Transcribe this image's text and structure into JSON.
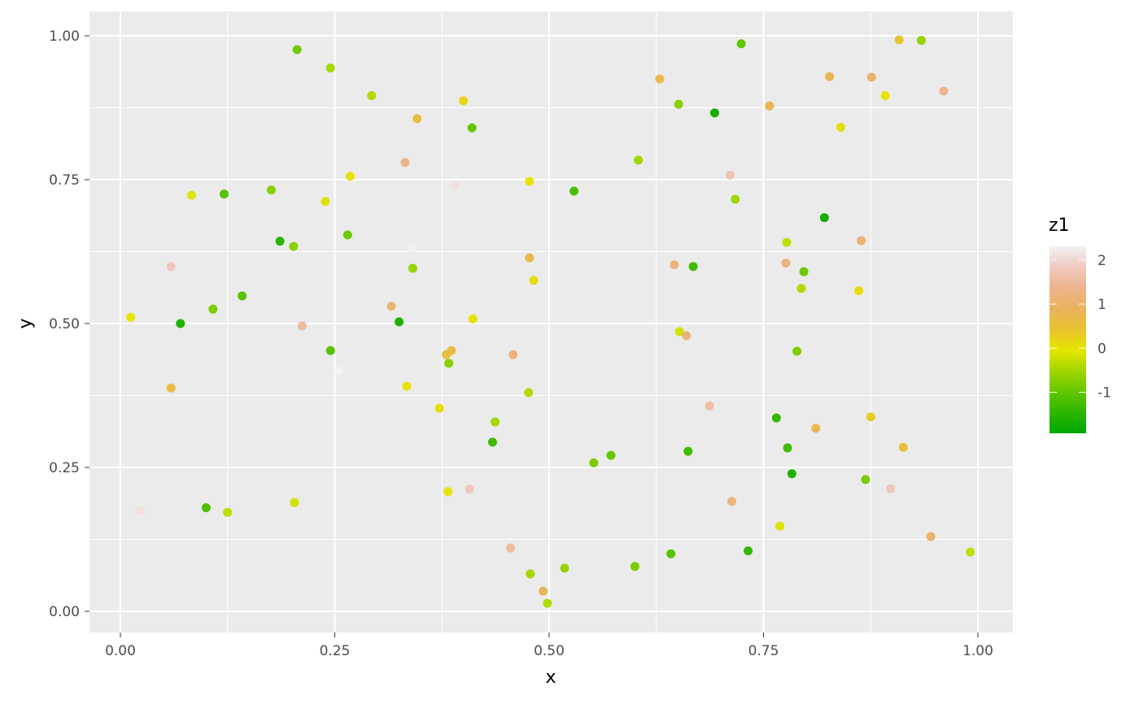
{
  "chart_data": {
    "type": "scatter",
    "xlabel": "x",
    "ylabel": "y",
    "xlim": [
      -0.036,
      1.04
    ],
    "ylim": [
      -0.035,
      1.044
    ],
    "xticks": [
      "0.00",
      "0.25",
      "0.50",
      "0.75",
      "1.00"
    ],
    "yticks": [
      "0.00",
      "0.25",
      "0.50",
      "0.75",
      "1.00"
    ],
    "grid": true,
    "legend": {
      "title": "z1",
      "position": "right",
      "ticks": [
        "-1",
        "0",
        "1",
        "2"
      ],
      "range": [
        -1.93,
        2.31
      ],
      "colors": [
        "#00A600",
        "#2DB600",
        "#63C600",
        "#A0D600",
        "#E6E600",
        "#E8C32E",
        "#EBB25E",
        "#EDB48E",
        "#F0C9C0",
        "#F2F2F2"
      ]
    },
    "points": [
      [
        0.012,
        0.511,
        0
      ],
      [
        0.023,
        0.175,
        2.1
      ],
      [
        0.059,
        0.599,
        1.8
      ],
      [
        0.059,
        0.388,
        0.6
      ],
      [
        0.07,
        0.5,
        -1.6
      ],
      [
        0.083,
        0.723,
        -0.1
      ],
      [
        0.1,
        0.18,
        -1.2
      ],
      [
        0.108,
        0.525,
        -0.8
      ],
      [
        0.121,
        0.725,
        -1.1
      ],
      [
        0.125,
        0.172,
        -0.3
      ],
      [
        0.142,
        0.548,
        -1.1
      ],
      [
        0.176,
        0.732,
        -0.7
      ],
      [
        0.186,
        0.643,
        -1.5
      ],
      [
        0.202,
        0.634,
        -0.7
      ],
      [
        0.203,
        0.189,
        -0.2
      ],
      [
        0.206,
        0.976,
        -0.9
      ],
      [
        0.212,
        0.496,
        1.5
      ],
      [
        0.239,
        0.712,
        -0.1
      ],
      [
        0.245,
        0.944,
        -0.5
      ],
      [
        0.245,
        0.453,
        -1.1
      ],
      [
        0.255,
        0.418,
        2.3
      ],
      [
        0.265,
        0.654,
        -0.9
      ],
      [
        0.268,
        0.756,
        0
      ],
      [
        0.293,
        0.896,
        -0.4
      ],
      [
        0.316,
        0.53,
        1.1
      ],
      [
        0.325,
        0.503,
        -1.6
      ],
      [
        0.332,
        0.78,
        1.3
      ],
      [
        0.334,
        0.391,
        0
      ],
      [
        0.34,
        0.631,
        2.3
      ],
      [
        0.341,
        0.596,
        -0.6
      ],
      [
        0.346,
        0.856,
        0.6
      ],
      [
        0.372,
        0.353,
        0.1
      ],
      [
        0.38,
        0.446,
        0.6
      ],
      [
        0.382,
        0.208,
        0
      ],
      [
        0.383,
        0.431,
        -0.7
      ],
      [
        0.386,
        0.453,
        0.6
      ],
      [
        0.39,
        0.74,
        2.1
      ],
      [
        0.4,
        0.887,
        0.2
      ],
      [
        0.407,
        0.212,
        1.8
      ],
      [
        0.41,
        0.84,
        -1.0
      ],
      [
        0.411,
        0.508,
        0
      ],
      [
        0.434,
        0.294,
        -1.3
      ],
      [
        0.437,
        0.329,
        -0.5
      ],
      [
        0.455,
        0.11,
        1.5
      ],
      [
        0.458,
        0.446,
        1.2
      ],
      [
        0.476,
        0.38,
        -0.4
      ],
      [
        0.477,
        0.747,
        0
      ],
      [
        0.477,
        0.614,
        0.7
      ],
      [
        0.478,
        0.065,
        -0.5
      ],
      [
        0.482,
        0.575,
        0.1
      ],
      [
        0.493,
        0.035,
        0.8
      ],
      [
        0.498,
        0.014,
        -0.4
      ],
      [
        0.518,
        0.075,
        -0.6
      ],
      [
        0.529,
        0.73,
        -1.2
      ],
      [
        0.552,
        0.258,
        -0.8
      ],
      [
        0.572,
        0.271,
        -1.0
      ],
      [
        0.6,
        0.078,
        -0.8
      ],
      [
        0.604,
        0.784,
        -0.5
      ],
      [
        0.629,
        0.925,
        0.7
      ],
      [
        0.642,
        0.1,
        -1.1
      ],
      [
        0.646,
        0.602,
        1.2
      ],
      [
        0.651,
        0.881,
        -0.7
      ],
      [
        0.652,
        0.486,
        -0.2
      ],
      [
        0.66,
        0.479,
        1.2
      ],
      [
        0.662,
        0.278,
        -1.3
      ],
      [
        0.668,
        0.599,
        -1.3
      ],
      [
        0.687,
        0.357,
        1.6
      ],
      [
        0.693,
        0.866,
        -1.7
      ],
      [
        0.711,
        0.758,
        1.7
      ],
      [
        0.713,
        0.191,
        1.2
      ],
      [
        0.717,
        0.716,
        -0.5
      ],
      [
        0.724,
        0.986,
        -1.0
      ],
      [
        0.732,
        0.105,
        -1.4
      ],
      [
        0.757,
        0.878,
        0.8
      ],
      [
        0.765,
        0.336,
        -1.4
      ],
      [
        0.769,
        0.148,
        -0.1
      ],
      [
        0.776,
        0.605,
        1.2
      ],
      [
        0.777,
        0.641,
        -0.3
      ],
      [
        0.778,
        0.284,
        -1.3
      ],
      [
        0.783,
        0.239,
        -1.6
      ],
      [
        0.789,
        0.452,
        -0.8
      ],
      [
        0.794,
        0.561,
        -0.4
      ],
      [
        0.797,
        0.59,
        -0.9
      ],
      [
        0.811,
        0.318,
        0.8
      ],
      [
        0.821,
        0.684,
        -1.7
      ],
      [
        0.827,
        0.929,
        0.8
      ],
      [
        0.84,
        0.841,
        0.1
      ],
      [
        0.861,
        0.557,
        0.1
      ],
      [
        0.864,
        0.644,
        1.1
      ],
      [
        0.869,
        0.229,
        -0.8
      ],
      [
        0.875,
        0.338,
        0.3
      ],
      [
        0.876,
        0.928,
        1.0
      ],
      [
        0.892,
        0.896,
        0
      ],
      [
        0.898,
        0.213,
        1.8
      ],
      [
        0.908,
        0.993,
        0.4
      ],
      [
        0.913,
        0.285,
        0.6
      ],
      [
        0.934,
        0.992,
        -0.6
      ],
      [
        0.945,
        0.13,
        1.0
      ],
      [
        0.96,
        0.904,
        1.4
      ],
      [
        0.991,
        0.103,
        -0.3
      ]
    ]
  }
}
